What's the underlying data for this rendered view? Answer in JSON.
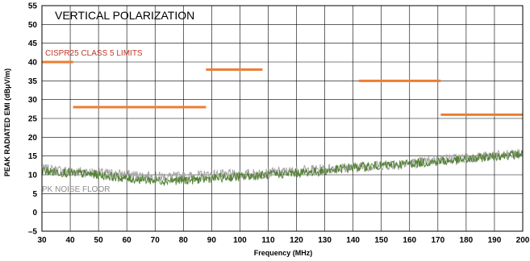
{
  "chart_data": {
    "type": "line",
    "title": "VERTICAL POLARIZATION",
    "xlabel": "Frequency (MHz)",
    "ylabel": "PEAK RADIATED EMI (dBμV/m)",
    "xlim": [
      30,
      200
    ],
    "ylim": [
      -5,
      55
    ],
    "x_ticks": [
      30,
      40,
      50,
      60,
      70,
      80,
      90,
      100,
      110,
      120,
      130,
      140,
      150,
      160,
      170,
      180,
      190,
      200
    ],
    "y_ticks": [
      -5,
      0,
      5,
      10,
      15,
      20,
      25,
      30,
      35,
      40,
      45,
      50,
      55
    ],
    "x_tick_labels": [
      "30",
      "40",
      "50",
      "60",
      "70",
      "80",
      "90",
      "100",
      "110",
      "120",
      "130",
      "140",
      "150",
      "160",
      "170",
      "180",
      "190",
      "200"
    ],
    "y_tick_labels": [
      "–5",
      "0",
      "5",
      "10",
      "15",
      "20",
      "25",
      "30",
      "35",
      "40",
      "45",
      "50",
      "55"
    ],
    "grid": true,
    "annotations": {
      "limit_label": "CISPR25 CLASS 5 LIMITS",
      "floor_label": "PK NOISE FLOOR"
    },
    "limits": [
      {
        "x": [
          30,
          41
        ],
        "y": 40
      },
      {
        "x": [
          41,
          88
        ],
        "y": 28
      },
      {
        "x": [
          88,
          108
        ],
        "y": 38
      },
      {
        "x": [
          142,
          171
        ],
        "y": 35
      },
      {
        "x": [
          171,
          200
        ],
        "y": 26
      }
    ],
    "noise_floor": {
      "x": [
        30,
        40,
        50,
        60,
        70,
        80,
        90,
        100,
        110,
        120,
        130,
        140,
        150,
        160,
        170,
        180,
        190,
        200
      ],
      "y": [
        11.5,
        11,
        10.5,
        10,
        9.5,
        9.5,
        10,
        10,
        10.5,
        11,
        11.5,
        12,
        12.5,
        13,
        14,
        14.5,
        15,
        15.5
      ]
    },
    "emission": {
      "x": [
        30,
        40,
        50,
        60,
        70,
        80,
        90,
        100,
        110,
        120,
        130,
        140,
        150,
        160,
        170,
        180,
        190,
        200
      ],
      "y": [
        11,
        10.5,
        10,
        9,
        8.5,
        8.5,
        9,
        9.5,
        10,
        10.5,
        11,
        12,
        12.5,
        13,
        13.5,
        14,
        15,
        15.5
      ]
    },
    "colors": {
      "limit": "#ed7d31",
      "noise_floor": "#a6a6a6",
      "emission": "#548235",
      "grid": "#000000",
      "limit_label": "#c0392b",
      "floor_label": "#8c8c8c"
    }
  }
}
